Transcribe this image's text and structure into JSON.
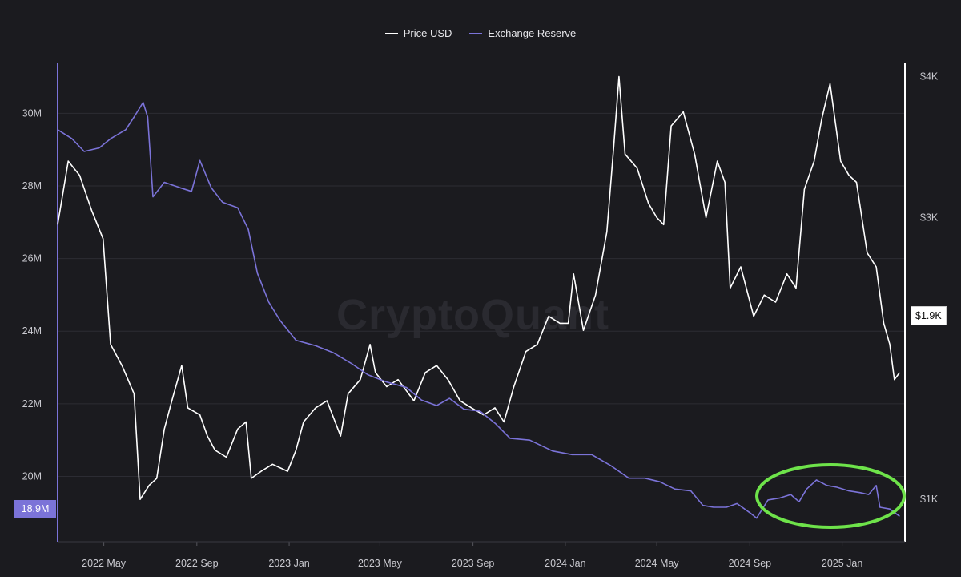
{
  "watermark": "CryptoQuant",
  "legend": [
    {
      "label": "Price USD",
      "color": "#ffffff"
    },
    {
      "label": "Exchange Reserve",
      "color": "#7b73d8"
    }
  ],
  "badges": {
    "reserve_current": "18.9M",
    "price_current": "$1.9K"
  },
  "colors": {
    "background": "#1b1b1f",
    "grid": "#2c2c33",
    "price": "#ffffff",
    "reserve": "#7b73d8",
    "highlight": "#6ee34a",
    "axis_text": "#c9c9cf"
  },
  "chart_data": {
    "type": "line",
    "x_ticks": [
      "2022 May",
      "2022 Sep",
      "2023 Jan",
      "2023 May",
      "2023 Sep",
      "2024 Jan",
      "2024 May",
      "2024 Sep",
      "2025 Jan"
    ],
    "left_axis": {
      "ticks": [
        "20M",
        "22M",
        "24M",
        "26M",
        "28M",
        "30M"
      ],
      "tick_values": [
        20,
        22,
        24,
        26,
        28,
        30
      ],
      "range": [
        18.2,
        31.4
      ],
      "unit": "M"
    },
    "right_axis": {
      "ticks": [
        "$1K",
        "$3K",
        "$4K"
      ],
      "tick_values": [
        1000,
        3000,
        4000
      ],
      "range": [
        700,
        4100
      ]
    },
    "series": [
      {
        "name": "Price USD",
        "axis": "right",
        "points": [
          [
            "2022-03-01",
            2950
          ],
          [
            "2022-03-15",
            3400
          ],
          [
            "2022-03-30",
            3300
          ],
          [
            "2022-04-15",
            3050
          ],
          [
            "2022-04-30",
            2850
          ],
          [
            "2022-05-10",
            2100
          ],
          [
            "2022-05-25",
            1950
          ],
          [
            "2022-06-10",
            1750
          ],
          [
            "2022-06-18",
            1000
          ],
          [
            "2022-06-30",
            1100
          ],
          [
            "2022-07-10",
            1150
          ],
          [
            "2022-07-20",
            1500
          ],
          [
            "2022-07-30",
            1700
          ],
          [
            "2022-08-12",
            1950
          ],
          [
            "2022-08-20",
            1650
          ],
          [
            "2022-09-05",
            1600
          ],
          [
            "2022-09-15",
            1450
          ],
          [
            "2022-09-25",
            1350
          ],
          [
            "2022-10-10",
            1300
          ],
          [
            "2022-10-25",
            1500
          ],
          [
            "2022-11-05",
            1550
          ],
          [
            "2022-11-12",
            1150
          ],
          [
            "2022-11-25",
            1200
          ],
          [
            "2022-12-10",
            1250
          ],
          [
            "2022-12-30",
            1200
          ],
          [
            "2023-01-10",
            1350
          ],
          [
            "2023-01-20",
            1550
          ],
          [
            "2023-02-05",
            1650
          ],
          [
            "2023-02-20",
            1700
          ],
          [
            "2023-03-10",
            1450
          ],
          [
            "2023-03-20",
            1750
          ],
          [
            "2023-04-05",
            1850
          ],
          [
            "2023-04-18",
            2100
          ],
          [
            "2023-04-25",
            1900
          ],
          [
            "2023-05-10",
            1800
          ],
          [
            "2023-05-25",
            1850
          ],
          [
            "2023-06-15",
            1700
          ],
          [
            "2023-06-30",
            1900
          ],
          [
            "2023-07-15",
            1950
          ],
          [
            "2023-07-30",
            1850
          ],
          [
            "2023-08-15",
            1700
          ],
          [
            "2023-08-30",
            1650
          ],
          [
            "2023-09-15",
            1600
          ],
          [
            "2023-09-30",
            1650
          ],
          [
            "2023-10-12",
            1550
          ],
          [
            "2023-10-25",
            1800
          ],
          [
            "2023-11-10",
            2050
          ],
          [
            "2023-11-25",
            2100
          ],
          [
            "2023-12-10",
            2300
          ],
          [
            "2023-12-25",
            2250
          ],
          [
            "2024-01-05",
            2250
          ],
          [
            "2024-01-12",
            2600
          ],
          [
            "2024-01-25",
            2200
          ],
          [
            "2024-02-10",
            2450
          ],
          [
            "2024-02-25",
            2900
          ],
          [
            "2024-03-05",
            3500
          ],
          [
            "2024-03-12",
            4000
          ],
          [
            "2024-03-20",
            3450
          ],
          [
            "2024-04-05",
            3350
          ],
          [
            "2024-04-20",
            3100
          ],
          [
            "2024-05-01",
            3000
          ],
          [
            "2024-05-10",
            2950
          ],
          [
            "2024-05-20",
            3650
          ],
          [
            "2024-06-05",
            3750
          ],
          [
            "2024-06-20",
            3450
          ],
          [
            "2024-07-05",
            3000
          ],
          [
            "2024-07-20",
            3400
          ],
          [
            "2024-07-30",
            3250
          ],
          [
            "2024-08-06",
            2500
          ],
          [
            "2024-08-20",
            2650
          ],
          [
            "2024-09-06",
            2300
          ],
          [
            "2024-09-20",
            2450
          ],
          [
            "2024-10-05",
            2400
          ],
          [
            "2024-10-20",
            2600
          ],
          [
            "2024-11-01",
            2500
          ],
          [
            "2024-11-12",
            3200
          ],
          [
            "2024-11-25",
            3400
          ],
          [
            "2024-12-05",
            3700
          ],
          [
            "2024-12-16",
            3950
          ],
          [
            "2024-12-30",
            3400
          ],
          [
            "2025-01-10",
            3300
          ],
          [
            "2025-01-20",
            3250
          ],
          [
            "2025-02-03",
            2750
          ],
          [
            "2025-02-15",
            2650
          ],
          [
            "2025-02-25",
            2250
          ],
          [
            "2025-03-05",
            2100
          ],
          [
            "2025-03-11",
            1850
          ],
          [
            "2025-03-18",
            1900
          ]
        ]
      },
      {
        "name": "Exchange Reserve",
        "axis": "left",
        "points": [
          [
            "2022-03-01",
            29.55
          ],
          [
            "2022-03-20",
            29.3
          ],
          [
            "2022-04-05",
            28.95
          ],
          [
            "2022-04-25",
            29.05
          ],
          [
            "2022-05-10",
            29.3
          ],
          [
            "2022-05-30",
            29.55
          ],
          [
            "2022-06-10",
            29.9
          ],
          [
            "2022-06-22",
            30.3
          ],
          [
            "2022-06-28",
            29.9
          ],
          [
            "2022-07-05",
            27.7
          ],
          [
            "2022-07-20",
            28.1
          ],
          [
            "2022-08-10",
            27.95
          ],
          [
            "2022-08-25",
            27.85
          ],
          [
            "2022-09-05",
            28.7
          ],
          [
            "2022-09-20",
            27.95
          ],
          [
            "2022-10-05",
            27.55
          ],
          [
            "2022-10-25",
            27.4
          ],
          [
            "2022-11-08",
            26.8
          ],
          [
            "2022-11-20",
            25.6
          ],
          [
            "2022-12-05",
            24.8
          ],
          [
            "2022-12-20",
            24.3
          ],
          [
            "2023-01-10",
            23.75
          ],
          [
            "2023-02-05",
            23.6
          ],
          [
            "2023-03-01",
            23.4
          ],
          [
            "2023-03-25",
            23.1
          ],
          [
            "2023-04-15",
            22.8
          ],
          [
            "2023-05-10",
            22.6
          ],
          [
            "2023-06-05",
            22.45
          ],
          [
            "2023-06-25",
            22.1
          ],
          [
            "2023-07-15",
            21.95
          ],
          [
            "2023-08-01",
            22.15
          ],
          [
            "2023-08-20",
            21.85
          ],
          [
            "2023-09-10",
            21.8
          ],
          [
            "2023-10-01",
            21.45
          ],
          [
            "2023-10-20",
            21.05
          ],
          [
            "2023-11-15",
            21.0
          ],
          [
            "2023-12-15",
            20.7
          ],
          [
            "2024-01-10",
            20.6
          ],
          [
            "2024-02-05",
            20.6
          ],
          [
            "2024-03-01",
            20.3
          ],
          [
            "2024-03-25",
            19.95
          ],
          [
            "2024-04-15",
            19.95
          ],
          [
            "2024-05-05",
            19.85
          ],
          [
            "2024-05-25",
            19.65
          ],
          [
            "2024-06-15",
            19.6
          ],
          [
            "2024-07-01",
            19.2
          ],
          [
            "2024-07-15",
            19.15
          ],
          [
            "2024-08-01",
            19.15
          ],
          [
            "2024-08-15",
            19.25
          ],
          [
            "2024-09-01",
            19.0
          ],
          [
            "2024-09-10",
            18.85
          ],
          [
            "2024-09-25",
            19.35
          ],
          [
            "2024-10-10",
            19.4
          ],
          [
            "2024-10-25",
            19.5
          ],
          [
            "2024-11-05",
            19.3
          ],
          [
            "2024-11-15",
            19.65
          ],
          [
            "2024-11-28",
            19.9
          ],
          [
            "2024-12-12",
            19.75
          ],
          [
            "2024-12-25",
            19.7
          ],
          [
            "2025-01-10",
            19.6
          ],
          [
            "2025-01-25",
            19.55
          ],
          [
            "2025-02-05",
            19.5
          ],
          [
            "2025-02-15",
            19.75
          ],
          [
            "2025-02-20",
            19.15
          ],
          [
            "2025-03-05",
            19.1
          ],
          [
            "2025-03-18",
            18.9
          ]
        ]
      }
    ],
    "grid": true,
    "legend_position": "top-center"
  }
}
